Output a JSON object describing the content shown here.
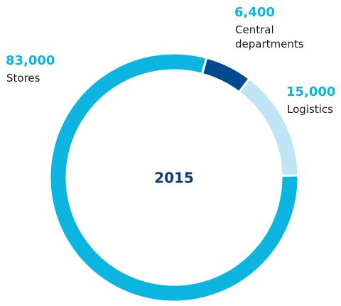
{
  "chart_data": {
    "type": "donut",
    "title": "2015",
    "categories": [
      "Stores",
      "Central departments",
      "Logistics"
    ],
    "values": [
      83000,
      6400,
      15000
    ],
    "value_labels": [
      "83,000",
      "6,400",
      "15,000"
    ],
    "colors": [
      "#0bb5df",
      "#004a8f",
      "#bfe5f5"
    ]
  }
}
